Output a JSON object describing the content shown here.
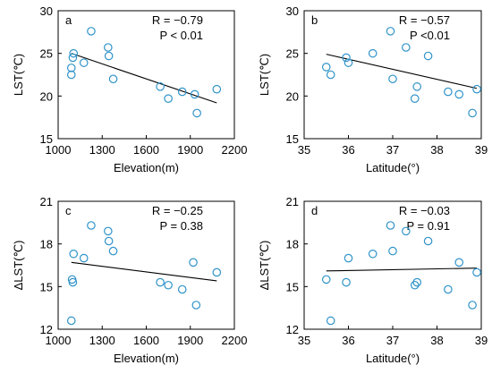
{
  "chart_data": [
    {
      "type": "scatter",
      "panel_label": "a",
      "xlabel": "Elevation(m)",
      "ylabel": "LST(℃)",
      "xlim": [
        1000,
        2200
      ],
      "ylim": [
        15,
        30
      ],
      "xticks": [
        1000,
        1300,
        1600,
        1900,
        2200
      ],
      "yticks": [
        15,
        20,
        25,
        30
      ],
      "stats": [
        "R = −0.79",
        "P < 0.01"
      ],
      "points": [
        {
          "x": 1090,
          "y": 22.5
        },
        {
          "x": 1090,
          "y": 23.3
        },
        {
          "x": 1100,
          "y": 24.5
        },
        {
          "x": 1105,
          "y": 25.0
        },
        {
          "x": 1175,
          "y": 23.9
        },
        {
          "x": 1225,
          "y": 27.6
        },
        {
          "x": 1340,
          "y": 25.7
        },
        {
          "x": 1345,
          "y": 24.7
        },
        {
          "x": 1375,
          "y": 22.0
        },
        {
          "x": 1695,
          "y": 21.1
        },
        {
          "x": 1750,
          "y": 19.7
        },
        {
          "x": 1845,
          "y": 20.5
        },
        {
          "x": 1930,
          "y": 20.2
        },
        {
          "x": 1945,
          "y": 18.0
        },
        {
          "x": 2080,
          "y": 20.8
        }
      ],
      "fit": [
        {
          "x": 1090,
          "y": 25.0
        },
        {
          "x": 2080,
          "y": 19.2
        }
      ],
      "grid": false
    },
    {
      "type": "scatter",
      "panel_label": "b",
      "xlabel": "Latitude(°)",
      "ylabel": "LST(℃)",
      "xlim": [
        35,
        39
      ],
      "ylim": [
        15,
        30
      ],
      "xticks": [
        35,
        36,
        37,
        38,
        39
      ],
      "yticks": [
        15,
        20,
        25,
        30
      ],
      "stats": [
        "R = −0.57",
        "P <0.01"
      ],
      "points": [
        {
          "x": 35.5,
          "y": 23.4
        },
        {
          "x": 35.6,
          "y": 22.5
        },
        {
          "x": 35.95,
          "y": 24.5
        },
        {
          "x": 36.0,
          "y": 23.9
        },
        {
          "x": 36.55,
          "y": 25.0
        },
        {
          "x": 36.95,
          "y": 27.6
        },
        {
          "x": 37.0,
          "y": 22.0
        },
        {
          "x": 37.3,
          "y": 25.7
        },
        {
          "x": 37.5,
          "y": 19.7
        },
        {
          "x": 37.55,
          "y": 21.1
        },
        {
          "x": 37.8,
          "y": 24.7
        },
        {
          "x": 38.25,
          "y": 20.5
        },
        {
          "x": 38.5,
          "y": 20.2
        },
        {
          "x": 38.8,
          "y": 18.0
        },
        {
          "x": 38.9,
          "y": 20.8
        }
      ],
      "fit": [
        {
          "x": 35.5,
          "y": 24.9
        },
        {
          "x": 38.9,
          "y": 20.9
        }
      ],
      "grid": false
    },
    {
      "type": "scatter",
      "panel_label": "c",
      "xlabel": "Elevation(m)",
      "ylabel": "ΔLST(℃)",
      "xlim": [
        1000,
        2200
      ],
      "ylim": [
        12,
        21
      ],
      "xticks": [
        1000,
        1300,
        1600,
        1900,
        2200
      ],
      "yticks": [
        12,
        15,
        18,
        21
      ],
      "stats": [
        "R = −0.25",
        "P = 0.38"
      ],
      "points": [
        {
          "x": 1090,
          "y": 12.6
        },
        {
          "x": 1095,
          "y": 15.5
        },
        {
          "x": 1100,
          "y": 15.3
        },
        {
          "x": 1105,
          "y": 17.3
        },
        {
          "x": 1175,
          "y": 17.0
        },
        {
          "x": 1225,
          "y": 19.3
        },
        {
          "x": 1340,
          "y": 18.9
        },
        {
          "x": 1345,
          "y": 18.2
        },
        {
          "x": 1375,
          "y": 17.5
        },
        {
          "x": 1695,
          "y": 15.3
        },
        {
          "x": 1750,
          "y": 15.1
        },
        {
          "x": 1845,
          "y": 14.8
        },
        {
          "x": 1920,
          "y": 16.7
        },
        {
          "x": 1940,
          "y": 13.7
        },
        {
          "x": 2080,
          "y": 16.0
        }
      ],
      "fit": [
        {
          "x": 1090,
          "y": 16.7
        },
        {
          "x": 2080,
          "y": 15.4
        }
      ],
      "grid": false
    },
    {
      "type": "scatter",
      "panel_label": "d",
      "xlabel": "Latitude(°)",
      "ylabel": "ΔLST(℃)",
      "xlim": [
        35,
        39
      ],
      "ylim": [
        12,
        21
      ],
      "xticks": [
        35,
        36,
        37,
        38,
        39
      ],
      "yticks": [
        12,
        15,
        18,
        21
      ],
      "stats": [
        "R = −0.03",
        "P = 0.91"
      ],
      "points": [
        {
          "x": 35.5,
          "y": 15.5
        },
        {
          "x": 35.6,
          "y": 12.6
        },
        {
          "x": 35.95,
          "y": 15.3
        },
        {
          "x": 36.0,
          "y": 17.0
        },
        {
          "x": 36.55,
          "y": 17.3
        },
        {
          "x": 36.95,
          "y": 19.3
        },
        {
          "x": 37.0,
          "y": 17.5
        },
        {
          "x": 37.3,
          "y": 18.9
        },
        {
          "x": 37.5,
          "y": 15.1
        },
        {
          "x": 37.55,
          "y": 15.3
        },
        {
          "x": 37.8,
          "y": 18.2
        },
        {
          "x": 38.25,
          "y": 14.8
        },
        {
          "x": 38.5,
          "y": 16.7
        },
        {
          "x": 38.8,
          "y": 13.7
        },
        {
          "x": 38.9,
          "y": 16.0
        }
      ],
      "fit": [
        {
          "x": 35.5,
          "y": 16.1
        },
        {
          "x": 38.9,
          "y": 16.3
        }
      ],
      "grid": false
    }
  ],
  "style": {
    "marker_stroke": "#2f93c9",
    "fit_line": "#000000",
    "axis_color": "#000000"
  }
}
